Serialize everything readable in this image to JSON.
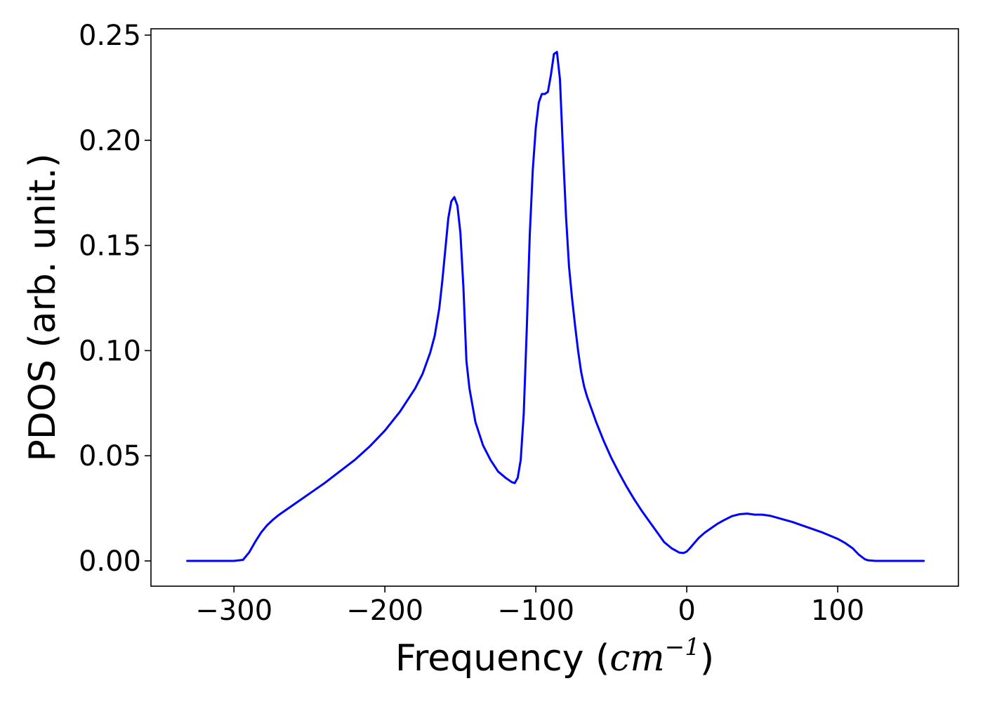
{
  "chart_data": {
    "type": "line",
    "title": "",
    "xlabel": "Frequency (cm⁻¹)",
    "xlabel_parts": {
      "prefix": "Frequency (",
      "math": "cm",
      "superscript": "−1",
      "suffix": ")"
    },
    "ylabel": "PDOS (arb. unit.)",
    "xlim": [
      -355,
      180
    ],
    "ylim": [
      -0.012,
      0.253
    ],
    "xticks": [
      -300,
      -200,
      -100,
      0,
      100
    ],
    "xtick_labels": [
      "−300",
      "−200",
      "−100",
      "0",
      "100"
    ],
    "yticks": [
      0.0,
      0.05,
      0.1,
      0.15,
      0.2,
      0.25
    ],
    "ytick_labels": [
      "0.00",
      "0.05",
      "0.10",
      "0.15",
      "0.20",
      "0.25"
    ],
    "grid": false,
    "legend": false,
    "line_color": "#0000ff",
    "series": [
      {
        "x": [
          -331,
          -300,
          -294,
          -290,
          -286,
          -282,
          -278,
          -274,
          -270,
          -260,
          -250,
          -240,
          -230,
          -220,
          -210,
          -200,
          -190,
          -180,
          -175,
          -170,
          -167,
          -164,
          -162,
          -160,
          -158,
          -156,
          -154,
          -152,
          -150,
          -148,
          -146,
          -144,
          -140,
          -135,
          -130,
          -125,
          -120,
          -116,
          -114,
          -112,
          -110,
          -108,
          -106,
          -104,
          -102,
          -100,
          -98,
          -96,
          -94,
          -92,
          -90,
          -88,
          -86,
          -84,
          -82,
          -80,
          -78,
          -76,
          -74,
          -72,
          -70,
          -68,
          -66,
          -64,
          -60,
          -55,
          -50,
          -45,
          -40,
          -35,
          -30,
          -25,
          -20,
          -15,
          -10,
          -5,
          -2,
          0,
          2,
          5,
          8,
          12,
          16,
          20,
          25,
          30,
          35,
          40,
          45,
          50,
          55,
          60,
          65,
          70,
          80,
          90,
          100,
          105,
          110,
          114,
          118,
          120,
          125,
          130,
          140,
          150,
          157
        ],
        "y": [
          0.0,
          0.0,
          0.0005,
          0.004,
          0.009,
          0.0135,
          0.017,
          0.0197,
          0.022,
          0.027,
          0.032,
          0.037,
          0.0425,
          0.048,
          0.0545,
          0.062,
          0.071,
          0.082,
          0.089,
          0.099,
          0.107,
          0.12,
          0.133,
          0.148,
          0.163,
          0.171,
          0.173,
          0.169,
          0.156,
          0.13,
          0.095,
          0.082,
          0.066,
          0.055,
          0.048,
          0.0425,
          0.0395,
          0.0375,
          0.037,
          0.0395,
          0.048,
          0.07,
          0.11,
          0.155,
          0.186,
          0.206,
          0.218,
          0.222,
          0.222,
          0.223,
          0.231,
          0.241,
          0.242,
          0.229,
          0.195,
          0.164,
          0.14,
          0.125,
          0.112,
          0.1,
          0.09,
          0.083,
          0.078,
          0.074,
          0.066,
          0.057,
          0.049,
          0.042,
          0.0355,
          0.0295,
          0.024,
          0.019,
          0.014,
          0.009,
          0.006,
          0.004,
          0.0038,
          0.0045,
          0.006,
          0.0085,
          0.011,
          0.0135,
          0.0155,
          0.0175,
          0.0195,
          0.0213,
          0.0222,
          0.0225,
          0.022,
          0.022,
          0.0215,
          0.0205,
          0.0195,
          0.0185,
          0.016,
          0.0135,
          0.0105,
          0.0085,
          0.006,
          0.003,
          0.0008,
          0.0003,
          0.0,
          0.0,
          0.0,
          0.0,
          0.0
        ]
      }
    ]
  }
}
